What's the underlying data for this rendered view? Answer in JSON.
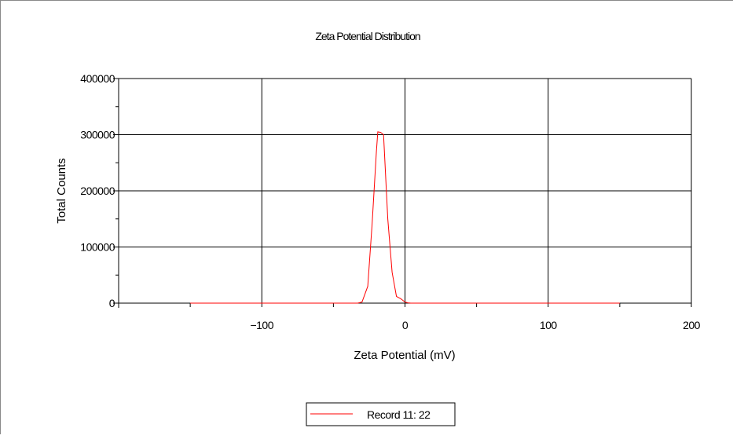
{
  "chart_data": {
    "type": "line",
    "title": "Zeta Potential Distribution",
    "xlabel": "Zeta Potential (mV)",
    "ylabel": "Total Counts",
    "xlim": [
      -200,
      200
    ],
    "ylim": [
      0,
      400000
    ],
    "x_ticks": [
      -100,
      0,
      100,
      200
    ],
    "y_ticks": [
      0,
      100000,
      200000,
      300000,
      400000
    ],
    "grid": true,
    "legend_position": "bottom-center",
    "series": [
      {
        "name": "Record 11: 22",
        "color": "#ff0000",
        "x": [
          -150,
          -100,
          -50,
          -36,
          -33,
          -30,
          -26,
          -23,
          -20,
          -19,
          -17,
          -15,
          -12,
          -9,
          -6,
          -3,
          0,
          2,
          4,
          8,
          50,
          100,
          150
        ],
        "y": [
          0,
          0,
          0,
          0,
          0,
          2000,
          30000,
          140000,
          270000,
          305000,
          304000,
          300000,
          150000,
          55000,
          12000,
          8000,
          2000,
          500,
          0,
          0,
          0,
          0,
          0
        ]
      }
    ]
  }
}
